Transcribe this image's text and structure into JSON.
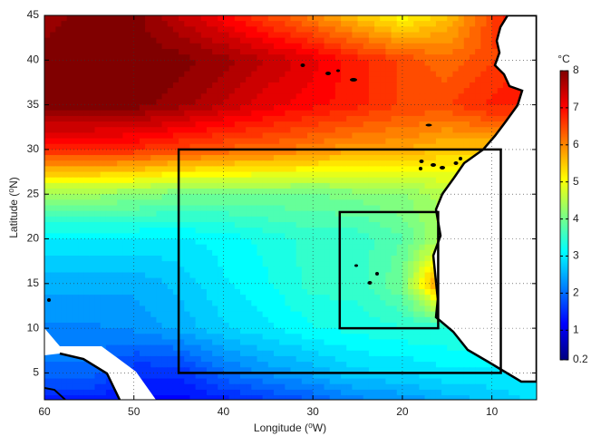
{
  "chart_data": {
    "type": "contour",
    "xlabel": "Longitude (⁰W)",
    "ylabel": "Latitude (⁰N)",
    "colorbar_label": "°C",
    "colormap": "jet",
    "grid": true,
    "xlim": [
      60,
      5
    ],
    "ylim": [
      2,
      45
    ],
    "xticks": [
      60,
      50,
      40,
      30,
      20,
      10
    ],
    "yticks": [
      5,
      10,
      15,
      20,
      25,
      30,
      35,
      40,
      45
    ],
    "zlim": [
      0.2,
      8
    ],
    "zticks": [
      0.2,
      1,
      2,
      3,
      4,
      5,
      6,
      7,
      8
    ],
    "x": [
      60,
      55,
      50,
      45,
      40,
      35,
      30,
      25,
      20,
      15,
      10,
      5
    ],
    "y": [
      45,
      40,
      35,
      30,
      25,
      20,
      15,
      10,
      5,
      0
    ],
    "z": [
      [
        7.8,
        8,
        8,
        7.5,
        7,
        6.5,
        6,
        5.5,
        5,
        5.5,
        6.5,
        7.5
      ],
      [
        8,
        8,
        8,
        8,
        7.8,
        7.5,
        7.2,
        6.8,
        6.5,
        6.2,
        6.5,
        7
      ],
      [
        8,
        8,
        8,
        7.8,
        7.5,
        7.2,
        7,
        6.8,
        6.5,
        6.5,
        6.8,
        6.8
      ],
      [
        6.8,
        6.8,
        6.7,
        6.5,
        6.3,
        6.2,
        6,
        5.8,
        5.8,
        5.5,
        5.5,
        5.5
      ],
      [
        4.3,
        4.3,
        4.2,
        4,
        4,
        4,
        4,
        4.1,
        4.2,
        4.5,
        4.5,
        4.5
      ],
      [
        3,
        3,
        3,
        3,
        3.1,
        3.3,
        3.5,
        3.5,
        3.8,
        4.5,
        4.5,
        4.5
      ],
      [
        2.5,
        2.5,
        2.5,
        2.7,
        3,
        3.2,
        3.5,
        3.5,
        4,
        6.5,
        4,
        4
      ],
      [
        2.2,
        2.2,
        2.3,
        2.5,
        2.8,
        3,
        3.2,
        3.3,
        3.4,
        3.4,
        3.4,
        3.4
      ],
      [
        2,
        2,
        1.5,
        1.5,
        2,
        2.3,
        2.5,
        2.8,
        2.8,
        3,
        3,
        3
      ],
      [
        1,
        1,
        1,
        1,
        1,
        1.2,
        1.5,
        1.8,
        2,
        2.2,
        2.5,
        2.8
      ]
    ],
    "boxes": [
      {
        "x": [
          45,
          9
        ],
        "y": [
          5,
          30
        ]
      },
      {
        "x": [
          27,
          16
        ],
        "y": [
          10,
          23
        ]
      }
    ]
  }
}
